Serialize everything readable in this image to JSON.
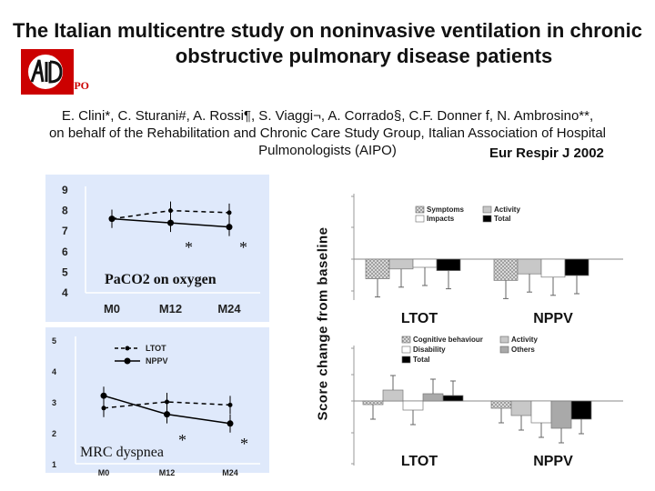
{
  "title_line1": "The Italian multicentre study on noninvasive ventilation in chronic",
  "title_line2": "obstructive pulmonary disease patients",
  "authors_line1": "E. Clini*, C. Sturani#, A. Rossi¶, S. Viaggi¬, A. Corrado§, C.F. Donner f, N. Ambrosino**,",
  "authors_line2": "on behalf of the Rehabilitation and Chronic Care Study Group, Italian Association of Hospital",
  "authors_line3": "Pulmonologists (AIPO)",
  "journal": "Eur Respir J 2002",
  "logo_text": "AIPO",
  "colors": {
    "panel_bg": "#dfe9fb",
    "white": "#ffffff",
    "light_gray": "#c8c8c8",
    "mid_gray": "#a9a9a9",
    "black": "#000000",
    "hatch": "#9a9a9a"
  },
  "chart_data": [
    {
      "type": "line",
      "title": "PaCO2 on oxygen",
      "categories": [
        "M0",
        "M12",
        "M24"
      ],
      "ylim": [
        4,
        9
      ],
      "yticks": [
        "4",
        "5",
        "6",
        "7",
        "8",
        "9"
      ],
      "series": [
        {
          "name": "LTOT",
          "style": "dashed",
          "values": [
            7.6,
            8.0,
            7.9
          ]
        },
        {
          "name": "NPPV",
          "style": "solid",
          "values": [
            7.6,
            7.4,
            7.2
          ]
        }
      ],
      "annotations": [
        "*",
        "*"
      ]
    },
    {
      "type": "line",
      "title": "MRC dyspnea",
      "categories": [
        "M0",
        "M12",
        "M24"
      ],
      "ylim": [
        1,
        5
      ],
      "yticks": [
        "1",
        "2",
        "3",
        "4",
        "5"
      ],
      "legend": [
        "LTOT",
        "NPPV"
      ],
      "series": [
        {
          "name": "LTOT",
          "style": "dashed",
          "values": [
            2.8,
            3.0,
            2.9
          ]
        },
        {
          "name": "NPPV",
          "style": "solid",
          "values": [
            3.2,
            2.6,
            2.3
          ]
        }
      ],
      "annotations": [
        "*",
        "*"
      ]
    },
    {
      "type": "bar",
      "ylabel": "Score change from baseline",
      "categories": [
        "LTOT",
        "NPPV"
      ],
      "legend": [
        "Symptoms",
        "Activity",
        "Impacts",
        "Total"
      ],
      "series": [
        {
          "name": "Symptoms",
          "values": [
            -1.2,
            -1.3
          ]
        },
        {
          "name": "Activity",
          "values": [
            -0.6,
            -0.9
          ]
        },
        {
          "name": "Impacts",
          "values": [
            -0.5,
            -1.1
          ]
        },
        {
          "name": "Total",
          "values": [
            -0.7,
            -1.0
          ]
        }
      ]
    },
    {
      "type": "bar",
      "categories": [
        "LTOT",
        "NPPV"
      ],
      "legend": [
        "Cognitive behaviour",
        "Activity",
        "Disability",
        "Others",
        "Total"
      ],
      "series": [
        {
          "name": "Cognitive behaviour",
          "values": [
            -0.2,
            -0.4
          ]
        },
        {
          "name": "Activity",
          "values": [
            0.6,
            -0.8
          ]
        },
        {
          "name": "Disability",
          "values": [
            -0.5,
            -1.2
          ]
        },
        {
          "name": "Others",
          "values": [
            0.4,
            -1.5
          ]
        },
        {
          "name": "Total",
          "values": [
            0.3,
            -1.0
          ]
        }
      ]
    }
  ]
}
